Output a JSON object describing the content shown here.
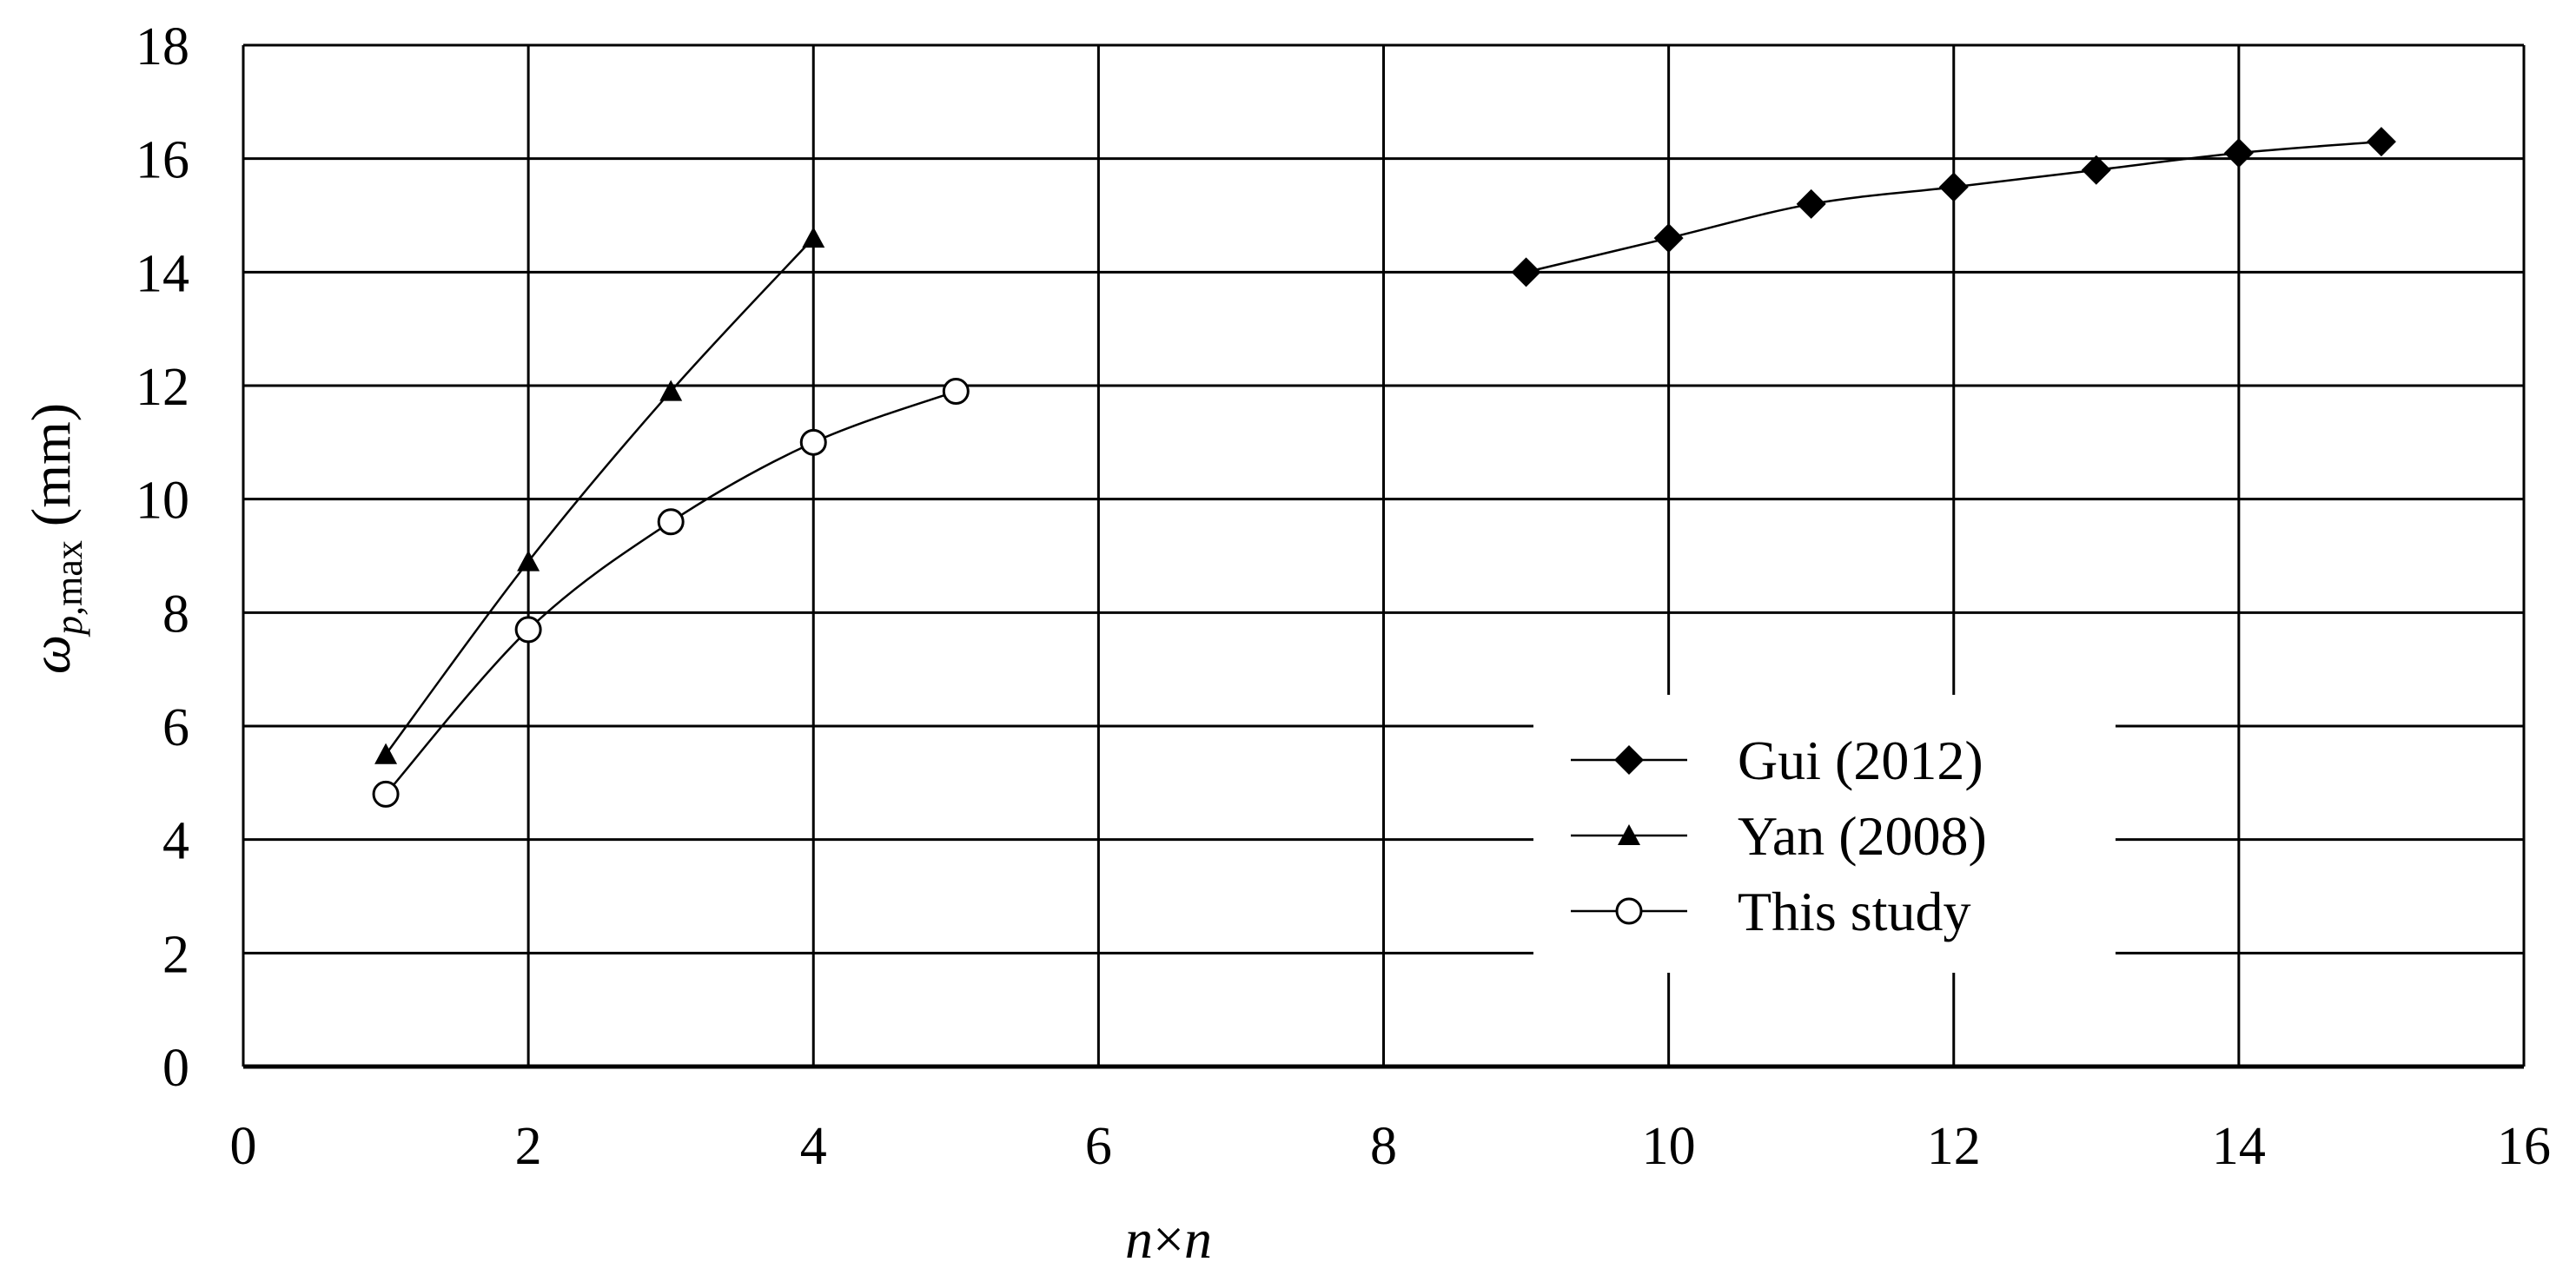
{
  "chart_data": {
    "type": "line",
    "xlabel": {
      "n1": "n",
      "op": "×",
      "n2": "n"
    },
    "ylabel": {
      "sym": "ω",
      "sub": "p,",
      "sub2": "max",
      "unit": " (mm)"
    },
    "xlim": [
      0,
      16
    ],
    "ylim": [
      0,
      18
    ],
    "xticks": [
      0,
      2,
      4,
      6,
      8,
      10,
      12,
      14,
      16
    ],
    "yticks": [
      0,
      2,
      4,
      6,
      8,
      10,
      12,
      14,
      16,
      18
    ],
    "grid": true,
    "legend_position": "lower-right",
    "series": [
      {
        "name": "Gui (2012)",
        "marker": "diamond-filled",
        "x": [
          9,
          10,
          11,
          12,
          13,
          14,
          15
        ],
        "y": [
          14.0,
          14.6,
          15.2,
          15.5,
          15.8,
          16.1,
          16.3
        ]
      },
      {
        "name": "Yan (2008)",
        "marker": "triangle-filled",
        "x": [
          1,
          2,
          3,
          4
        ],
        "y": [
          5.5,
          8.9,
          11.9,
          14.6
        ]
      },
      {
        "name": "This study",
        "marker": "circle-open",
        "x": [
          1,
          2,
          3,
          4,
          5
        ],
        "y": [
          4.8,
          7.7,
          9.6,
          11.0,
          11.9
        ]
      }
    ]
  }
}
